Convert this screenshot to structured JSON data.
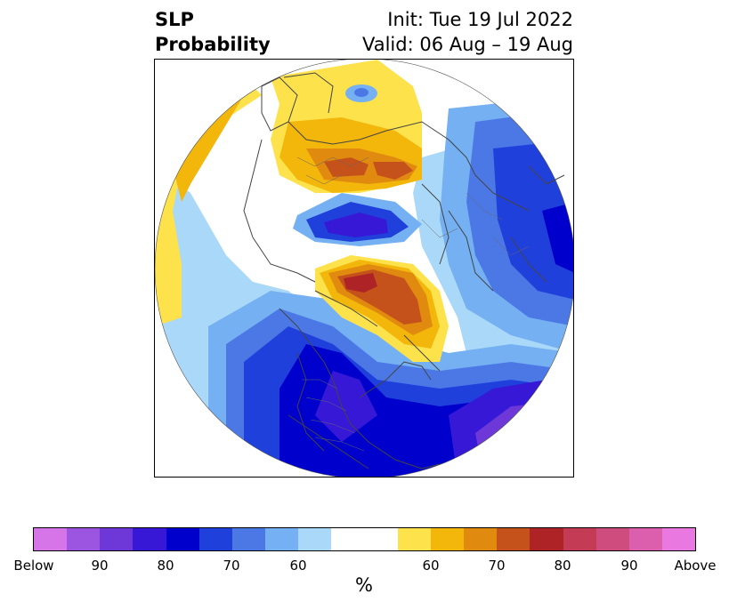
{
  "title": {
    "left_line1": "SLP",
    "left_line2": "Probability",
    "right_line1": "Init: Tue 19 Jul 2022",
    "right_line2": "Valid: 06 Aug – 19 Aug"
  },
  "colorbar": {
    "unit": "%",
    "tick_labels": [
      "Below",
      "90",
      "80",
      "70",
      "60",
      "60",
      "70",
      "80",
      "90",
      "Above"
    ],
    "colors": [
      "#d575e8",
      "#9c55e1",
      "#6e38d8",
      "#3618d6",
      "#0000cc",
      "#2040dc",
      "#4c78e6",
      "#74b0f2",
      "#aad8f8",
      "#ffffff",
      "#ffffff",
      "#fde24c",
      "#f3b70b",
      "#e08a0f",
      "#c6521b",
      "#ae2325",
      "#c43b55",
      "#cf4c7e",
      "#dc5fad",
      "#e978e0"
    ]
  },
  "map": {
    "projection": "north-polar-stereographic",
    "legend": {
      "below_colors": [
        "#6e38d8",
        "#3618d6",
        "#0000cc",
        "#2040dc",
        "#4c78e6",
        "#74b0f2",
        "#aad8f8"
      ],
      "above_colors": [
        "#fde24c",
        "#f3b70b",
        "#e08a0f",
        "#c6521b",
        "#ae2325"
      ]
    }
  }
}
